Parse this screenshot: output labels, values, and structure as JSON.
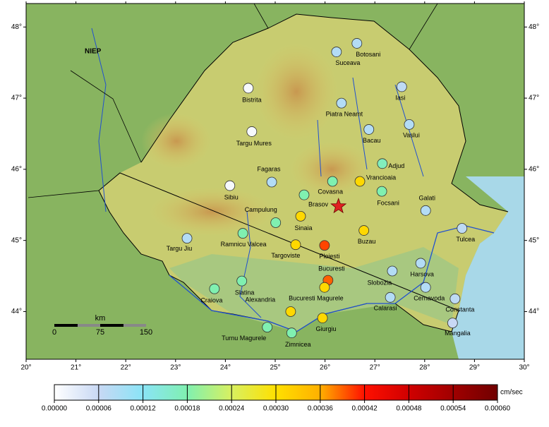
{
  "map": {
    "lonlim": [
      20,
      30
    ],
    "latlim": [
      43.33,
      48.33
    ],
    "lonticks": [
      {
        "value": 20,
        "label": "20°"
      },
      {
        "value": 21,
        "label": "21°"
      },
      {
        "value": 22,
        "label": "22°"
      },
      {
        "value": 23,
        "label": "23°"
      },
      {
        "value": 24,
        "label": "24°"
      },
      {
        "value": 25,
        "label": "25°"
      },
      {
        "value": 26,
        "label": "26°"
      },
      {
        "value": 27,
        "label": "27°"
      },
      {
        "value": 28,
        "label": "28°"
      },
      {
        "value": 29,
        "label": "29°"
      },
      {
        "value": 30,
        "label": "30°"
      }
    ],
    "latticks": [
      {
        "value": 44,
        "label": "44°"
      },
      {
        "value": 45,
        "label": "45°"
      },
      {
        "value": 46,
        "label": "46°"
      },
      {
        "value": 47,
        "label": "47°"
      },
      {
        "value": 48,
        "label": "48°"
      }
    ],
    "annotation": "NIEP",
    "scale_bar": {
      "title": "km",
      "labels": [
        0,
        75,
        150
      ]
    },
    "epicenter": {
      "lon": 26.27,
      "lat": 45.48,
      "color": "#e02020"
    },
    "stations": [
      {
        "name": "Suceava",
        "lon": 26.23,
        "lat": 47.65,
        "value": 8e-05
      },
      {
        "name": "Botosani",
        "lon": 26.64,
        "lat": 47.77,
        "value": 8e-05
      },
      {
        "name": "Iasi",
        "lon": 27.54,
        "lat": 47.16,
        "value": 7e-05
      },
      {
        "name": "Bistrita",
        "lon": 24.46,
        "lat": 47.14,
        "value": 1e-05
      },
      {
        "name": "Piatra Neamt",
        "lon": 26.33,
        "lat": 46.93,
        "value": 8e-05
      },
      {
        "name": "Bacau",
        "lon": 26.88,
        "lat": 46.56,
        "value": 8e-05
      },
      {
        "name": "Vaslui",
        "lon": 27.69,
        "lat": 46.63,
        "value": 8e-05
      },
      {
        "name": "Targu Mures",
        "lon": 24.53,
        "lat": 46.53,
        "value": 1e-05
      },
      {
        "name": "Adjud",
        "lon": 27.15,
        "lat": 46.08,
        "value": 0.00017
      },
      {
        "name": "Fagaras",
        "lon": 24.93,
        "lat": 45.82,
        "value": 8e-05
      },
      {
        "name": "Covasna",
        "lon": 26.15,
        "lat": 45.83,
        "value": 0.00018
      },
      {
        "name": "Vrancioaia",
        "lon": 26.7,
        "lat": 45.83,
        "value": 0.00031
      },
      {
        "name": "Sibiu",
        "lon": 24.09,
        "lat": 45.77,
        "value": 1e-05
      },
      {
        "name": "Brasov",
        "lon": 25.58,
        "lat": 45.64,
        "value": 0.00018
      },
      {
        "name": "Focsani",
        "lon": 27.14,
        "lat": 45.69,
        "value": 0.00018
      },
      {
        "name": "Galati",
        "lon": 28.02,
        "lat": 45.42,
        "value": 8e-05
      },
      {
        "name": "Campulung",
        "lon": 25.01,
        "lat": 45.25,
        "value": 0.00018
      },
      {
        "name": "Sinaia",
        "lon": 25.51,
        "lat": 45.34,
        "value": 0.00031
      },
      {
        "name": "Tulcea",
        "lon": 28.75,
        "lat": 45.17,
        "value": 7e-05
      },
      {
        "name": "Targu Jiu",
        "lon": 23.23,
        "lat": 45.03,
        "value": 8e-05
      },
      {
        "name": "Ramnicu Valcea",
        "lon": 24.35,
        "lat": 45.1,
        "value": 0.00018
      },
      {
        "name": "Buzau",
        "lon": 26.78,
        "lat": 45.14,
        "value": 0.00031
      },
      {
        "name": "Targoviste",
        "lon": 25.41,
        "lat": 44.94,
        "value": 0.00031
      },
      {
        "name": "Ploiesti",
        "lon": 25.99,
        "lat": 44.93,
        "value": 0.0004
      },
      {
        "name": "Harsova",
        "lon": 27.92,
        "lat": 44.68,
        "value": 8e-05
      },
      {
        "name": "Slobozia",
        "lon": 27.35,
        "lat": 44.57,
        "value": 8e-05
      },
      {
        "name": "Bucuresti",
        "lon": 26.06,
        "lat": 44.44,
        "value": 0.00039
      },
      {
        "name": "Bucuresti Magurele",
        "lon": 25.99,
        "lat": 44.34,
        "value": 0.00031
      },
      {
        "name": "Craiova",
        "lon": 23.78,
        "lat": 44.32,
        "value": 0.00018
      },
      {
        "name": "Slatina",
        "lon": 24.33,
        "lat": 44.43,
        "value": 0.00018
      },
      {
        "name": "Alexandria",
        "lon": 24.7,
        "lat": 44.31,
        "value": null
      },
      {
        "name": "Cernavoda",
        "lon": 28.02,
        "lat": 44.34,
        "value": 8e-05
      },
      {
        "name": "Calarasi",
        "lon": 27.31,
        "lat": 44.2,
        "value": 8e-05
      },
      {
        "name": "Constanta",
        "lon": 28.61,
        "lat": 44.18,
        "value": 7e-05
      },
      {
        "name": "Giurgiu",
        "lon": 25.95,
        "lat": 43.91,
        "value": 0.00031
      },
      {
        "name": "Turnu Magurele",
        "lon": 24.84,
        "lat": 43.78,
        "value": 0.00018
      },
      {
        "name": "Zimnicea",
        "lon": 25.33,
        "lat": 43.7,
        "value": 0.00018
      },
      {
        "name": "Mangalia",
        "lon": 28.56,
        "lat": 43.84,
        "value": 6e-05
      },
      {
        "name": null,
        "lon": 25.31,
        "lat": 44.0,
        "value": 0.00031
      }
    ]
  },
  "colorbar": {
    "unit": "cm/sec",
    "ticks": [
      {
        "value": 0,
        "label": "0.00000"
      },
      {
        "value": 6e-05,
        "label": "0.00006"
      },
      {
        "value": 0.00012,
        "label": "0.00012"
      },
      {
        "value": 0.00018,
        "label": "0.00018"
      },
      {
        "value": 0.00024,
        "label": "0.00024"
      },
      {
        "value": 0.0003,
        "label": "0.00030"
      },
      {
        "value": 0.00036,
        "label": "0.00036"
      },
      {
        "value": 0.00042,
        "label": "0.00042"
      },
      {
        "value": 0.00048,
        "label": "0.00048"
      },
      {
        "value": 0.00054,
        "label": "0.00054"
      },
      {
        "value": 0.0006,
        "label": "0.00060"
      }
    ],
    "colors": [
      "#ffffff",
      "#c8d8f4",
      "#8ae4f6",
      "#80f0b0",
      "#d8f060",
      "#ffe000",
      "#ffb000",
      "#ff1000",
      "#d00000",
      "#a00000",
      "#700000"
    ]
  }
}
